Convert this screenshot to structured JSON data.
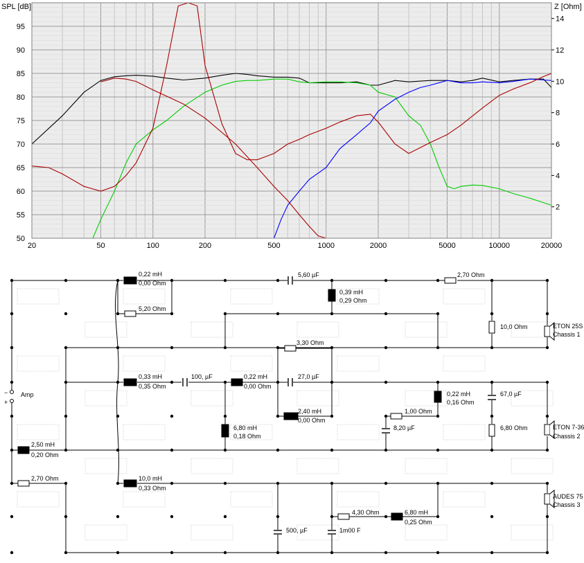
{
  "chart_data": {
    "type": "line",
    "ylabel_left": "SPL [dB]",
    "ylabel_right": "Z [Ohm]",
    "x_scale": "log",
    "xlim": [
      20,
      20000
    ],
    "ylim_left": [
      50,
      100
    ],
    "ylim_right": [
      0,
      15
    ],
    "x_ticks": [
      20,
      50,
      100,
      200,
      500,
      1000,
      2000,
      5000,
      10000,
      20000
    ],
    "y_ticks_left": [
      50,
      55,
      60,
      65,
      70,
      75,
      80,
      85,
      90,
      95
    ],
    "y_ticks_right": [
      2,
      4,
      6,
      8,
      10,
      12,
      14
    ],
    "grid": true,
    "series": [
      {
        "color": "#000000",
        "axis": "left",
        "x": [
          20,
          30,
          40,
          50,
          60,
          70,
          80,
          100,
          120,
          150,
          200,
          250,
          300,
          350,
          400,
          500,
          600,
          700,
          800,
          1000,
          1200,
          1500,
          1800,
          2000,
          2500,
          3000,
          4000,
          5000,
          6000,
          7000,
          8000,
          10000,
          12000,
          15000,
          18000,
          20000
        ],
        "y": [
          70,
          76,
          81,
          83.5,
          84.3,
          84.5,
          84.6,
          84.4,
          84,
          83.6,
          84,
          84.6,
          85,
          84.8,
          84.5,
          84.2,
          84.2,
          84,
          83,
          83,
          83,
          83.2,
          82.5,
          82.5,
          83.5,
          83.2,
          83.5,
          83.5,
          83.2,
          83.5,
          84,
          83.2,
          83.5,
          83.8,
          83.8,
          82
        ]
      },
      {
        "color": "#00cc00",
        "axis": "left",
        "x": [
          45,
          50,
          60,
          70,
          80,
          100,
          120,
          150,
          200,
          250,
          300,
          350,
          400,
          500,
          600,
          700,
          800,
          1000,
          1200,
          1500,
          1800,
          2000,
          2500,
          3000,
          3500,
          4000,
          4500,
          5000,
          5500,
          6000,
          7000,
          8000,
          10000,
          12000,
          15000,
          20000
        ],
        "y": [
          50,
          54,
          60,
          66,
          70,
          73,
          75,
          78,
          81,
          82.5,
          83.3,
          83.5,
          83.5,
          83.8,
          83.8,
          83.2,
          83,
          83.2,
          83.2,
          83,
          82.5,
          81,
          80,
          76,
          74,
          70,
          65,
          61,
          60.5,
          61,
          61.3,
          61.2,
          60.5,
          59.5,
          58.5,
          57
        ]
      },
      {
        "color": "#0000ff",
        "axis": "left",
        "x": [
          20,
          400,
          500,
          550,
          600,
          700,
          800,
          1000,
          1200,
          1500,
          1800,
          2000,
          2500,
          3000,
          3500,
          4000,
          5000,
          6000,
          7000,
          8000,
          10000,
          12000,
          15000,
          18000,
          20000
        ],
        "y": [
          50,
          50,
          50,
          54,
          57,
          60,
          62.5,
          65,
          69,
          72,
          74.5,
          77,
          79.5,
          81,
          82,
          82.5,
          83.5,
          83,
          83,
          83.2,
          83,
          83.3,
          83.8,
          83.6,
          83.5
        ]
      },
      {
        "color": "#aa0000",
        "axis": "left",
        "x": [
          50,
          60,
          70,
          80,
          100,
          150,
          200,
          300,
          400,
          500,
          600,
          700,
          800,
          900,
          1000
        ],
        "y": [
          83.2,
          84,
          83.8,
          83.3,
          81.5,
          78.5,
          75.5,
          70,
          65,
          61,
          58,
          55,
          52.5,
          50.5,
          50
        ]
      },
      {
        "color": "#aa0000",
        "axis": "right",
        "x": [
          20,
          25,
          30,
          40,
          50,
          60,
          70,
          80,
          100,
          120,
          140,
          160,
          180,
          200,
          250,
          300,
          350,
          400,
          500,
          600,
          700,
          800,
          1000,
          1200,
          1500,
          1800,
          2000,
          2500,
          3000,
          4000,
          5000,
          6000,
          8000,
          10000,
          12000,
          15000,
          18000,
          20000
        ],
        "y": [
          4.6,
          4.5,
          4.1,
          3.3,
          3,
          3.3,
          4,
          4.8,
          7,
          11,
          14.8,
          15,
          14.8,
          11,
          7.3,
          5.4,
          5,
          5,
          5.4,
          6,
          6.3,
          6.6,
          7,
          7.4,
          7.8,
          7.9,
          7.4,
          6,
          5.4,
          6.1,
          6.6,
          7.2,
          8.3,
          9.1,
          9.5,
          9.9,
          10.3,
          10.5
        ]
      }
    ]
  },
  "schematic": {
    "amp_label": "Amp",
    "amp_minus": "−",
    "amp_plus": "+",
    "chassis": [
      {
        "name": "ETON 25S",
        "sub": "Chassis 1"
      },
      {
        "name": "ETON 7-36",
        "sub": "Chassis 2"
      },
      {
        "name": "AUDES 75",
        "sub": "Chassis 3"
      }
    ],
    "components": {
      "l1_a": "0,22 mH",
      "l1_b": "0,00 Ohm",
      "r1": "5,20 Ohm",
      "c1": "5,60 µF",
      "l2_a": "0,39 mH",
      "l2_b": "0,29 Ohm",
      "r2": "2,70 Ohm",
      "r3": "10,0 Ohm",
      "r4": "3,30 Ohm",
      "l3_a": "0,33 mH",
      "l3_b": "0,35 Ohm",
      "c2": "100, µF",
      "l4_a": "0,22 mH",
      "l4_b": "0,00 Ohm",
      "c3": "27,0 µF",
      "l5_a": "0,22 mH",
      "l5_b": "0,16 Ohm",
      "c4": "67,0 µF",
      "l6_a": "2,40 mH",
      "l6_b": "0,00 Ohm",
      "r5": "1,00 Ohm",
      "l7_a": "6,80 mH",
      "l7_b": "0,18 Ohm",
      "c5": "8,20 µF",
      "r6": "6,80 Ohm",
      "l8_a": "2,50 mH",
      "l8_b": "0,20 Ohm",
      "r7": "2,70 Ohm",
      "l9_a": "10,0 mH",
      "l9_b": "0,33 Ohm",
      "r8": "4,30 Ohm",
      "l10_a": "6,80 mH",
      "l10_b": "0,25 Ohm",
      "c6": "500, µF",
      "c7": "1m00 F"
    }
  }
}
